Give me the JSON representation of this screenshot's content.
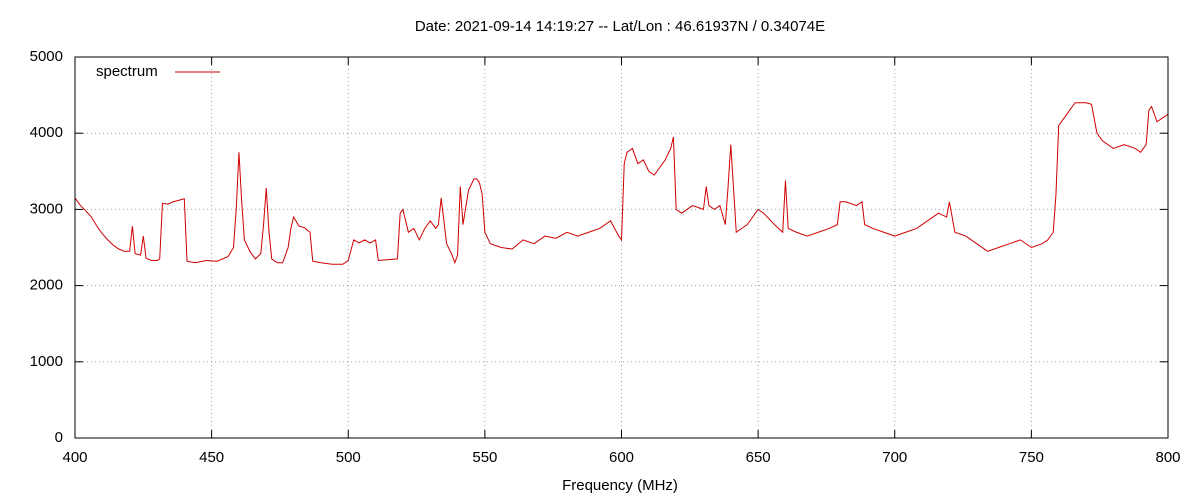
{
  "chart_data": {
    "type": "line",
    "title": "Date: 2021-09-14 14:19:27  --  Lat/Lon : 46.61937N / 0.34074E",
    "x_label": "Frequency (MHz)",
    "x": [
      400,
      402,
      404,
      406,
      408,
      410,
      412,
      414,
      416,
      418,
      420,
      421,
      422,
      424,
      425,
      426,
      428,
      430,
      431,
      432,
      434,
      436,
      438,
      440,
      441,
      444,
      448,
      452,
      456,
      458,
      459,
      460,
      461,
      462,
      464,
      466,
      468,
      469,
      470,
      471,
      472,
      474,
      476,
      478,
      479,
      480,
      482,
      484,
      486,
      487,
      490,
      494,
      498,
      500,
      502,
      504,
      506,
      508,
      510,
      511,
      514,
      518,
      519,
      520,
      522,
      524,
      526,
      528,
      530,
      532,
      533,
      534,
      536,
      538,
      539,
      540,
      541,
      542,
      544,
      546,
      547,
      548,
      549,
      550,
      552,
      556,
      560,
      564,
      568,
      572,
      576,
      580,
      584,
      588,
      592,
      596,
      599,
      600,
      601,
      602,
      604,
      606,
      608,
      610,
      612,
      614,
      616,
      618,
      619,
      620,
      622,
      626,
      630,
      631,
      632,
      634,
      636,
      638,
      639,
      640,
      642,
      646,
      648,
      650,
      652,
      656,
      659,
      660,
      661,
      664,
      668,
      672,
      676,
      679,
      680,
      682,
      686,
      688,
      689,
      692,
      696,
      700,
      704,
      708,
      712,
      716,
      719,
      720,
      722,
      726,
      730,
      734,
      738,
      742,
      746,
      750,
      754,
      756,
      758,
      759,
      760,
      762,
      764,
      766,
      770,
      772,
      774,
      776,
      780,
      784,
      788,
      790,
      792,
      793,
      794,
      796,
      798,
      800
    ],
    "series": [
      {
        "name": "spectrum",
        "color": "#d00000",
        "values": [
          3150,
          3050,
          2980,
          2900,
          2780,
          2680,
          2600,
          2530,
          2480,
          2450,
          2450,
          2780,
          2420,
          2400,
          2650,
          2360,
          2330,
          2330,
          2350,
          3080,
          3070,
          3100,
          3120,
          3140,
          2320,
          2300,
          2330,
          2320,
          2380,
          2500,
          3000,
          3750,
          3100,
          2600,
          2450,
          2350,
          2420,
          2800,
          3280,
          2700,
          2350,
          2300,
          2300,
          2500,
          2750,
          2900,
          2780,
          2760,
          2700,
          2320,
          2300,
          2280,
          2280,
          2330,
          2600,
          2560,
          2600,
          2560,
          2600,
          2330,
          2340,
          2350,
          2950,
          3000,
          2700,
          2750,
          2600,
          2750,
          2850,
          2750,
          2800,
          3150,
          2550,
          2400,
          2300,
          2400,
          3300,
          2800,
          3250,
          3400,
          3400,
          3350,
          3200,
          2700,
          2550,
          2500,
          2480,
          2600,
          2550,
          2650,
          2620,
          2700,
          2650,
          2700,
          2750,
          2850,
          2650,
          2600,
          3600,
          3750,
          3800,
          3600,
          3650,
          3500,
          3450,
          3550,
          3650,
          3800,
          3950,
          3000,
          2950,
          3050,
          3000,
          3300,
          3050,
          3000,
          3050,
          2800,
          3300,
          3850,
          2700,
          2800,
          2900,
          3000,
          2950,
          2800,
          2700,
          3380,
          2750,
          2700,
          2650,
          2700,
          2750,
          2800,
          3100,
          3100,
          3050,
          3100,
          2800,
          2750,
          2700,
          2650,
          2700,
          2750,
          2850,
          2950,
          2900,
          3100,
          2700,
          2650,
          2550,
          2450,
          2500,
          2550,
          2600,
          2500,
          2550,
          2600,
          2700,
          3200,
          4100,
          4200,
          4300,
          4400,
          4400,
          4380,
          4000,
          3900,
          3800,
          3850,
          3800,
          3750,
          3850,
          4300,
          4350,
          4150,
          4200,
          4250
        ]
      }
    ],
    "xlim": [
      400,
      800
    ],
    "xticks": [
      400,
      450,
      500,
      550,
      600,
      650,
      700,
      750,
      800
    ],
    "ylim": [
      0,
      5000
    ],
    "yticks": [
      0,
      1000,
      2000,
      3000,
      4000,
      5000
    ],
    "grid": true,
    "legend": "top-left"
  }
}
